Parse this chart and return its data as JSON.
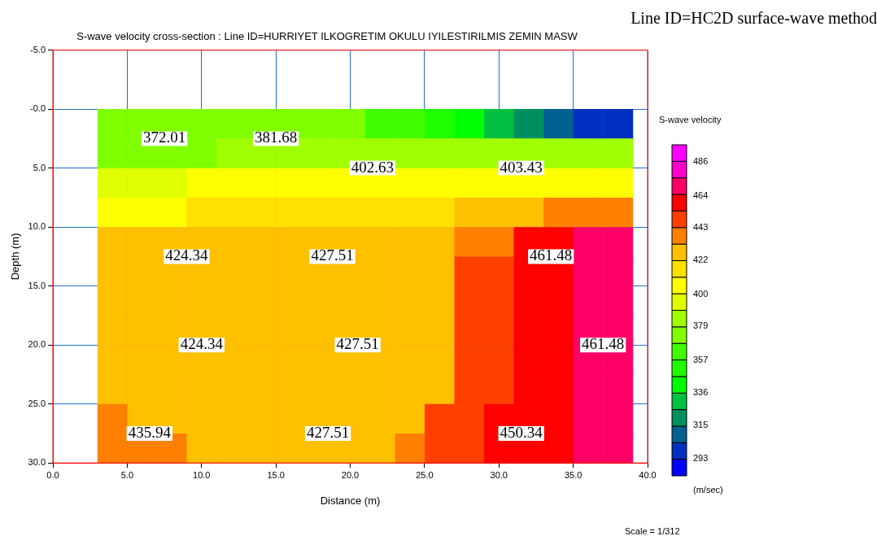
{
  "chart_data": {
    "type": "heatmap",
    "title": "S-wave velocity cross-section : Line ID=HURRIYET ILKOGRETIM OKULU IYILESTIRILMIS ZEMIN MASW",
    "xlabel": "Distance (m)",
    "ylabel": "Depth (m)",
    "clabel": "S-wave velocity",
    "x": [
      4,
      6,
      8,
      10,
      12,
      14,
      16,
      18,
      20,
      22,
      24,
      26,
      28,
      30,
      32,
      34,
      36,
      38
    ],
    "y": [
      1.25,
      3.75,
      6.25,
      8.75,
      11.25,
      13.75,
      16.25,
      18.75,
      21.25,
      23.75,
      26.25,
      28.75
    ],
    "xlim": [
      0,
      40
    ],
    "xticks": [
      {
        "value": 0,
        "label": "0.0"
      },
      {
        "value": 5,
        "label": "5.0"
      },
      {
        "value": 10,
        "label": "10.0"
      },
      {
        "value": 15,
        "label": "15.0"
      },
      {
        "value": 20,
        "label": "20.0"
      },
      {
        "value": 25,
        "label": "25.0"
      },
      {
        "value": 30,
        "label": "30.0"
      },
      {
        "value": 35,
        "label": "35.0"
      },
      {
        "value": 40,
        "label": "40.0"
      }
    ],
    "ylim": [
      30,
      -5
    ],
    "yticks": [
      {
        "value": -5,
        "label": "-5.0"
      },
      {
        "value": 0,
        "label": "-0.0"
      },
      {
        "value": 5,
        "label": "5.0"
      },
      {
        "value": 10,
        "label": "10.0"
      },
      {
        "value": 15,
        "label": "15.0"
      },
      {
        "value": 20,
        "label": "20.0"
      },
      {
        "value": 25,
        "label": "25.0"
      },
      {
        "value": 30,
        "label": "30.0"
      }
    ],
    "grid": true,
    "clim": [
      282,
      497
    ],
    "cticks": [
      293,
      315,
      336,
      357,
      379,
      400,
      422,
      443,
      464,
      486
    ],
    "colors": [
      "#0000ff",
      "#0030c0",
      "#006090",
      "#009060",
      "#00c040",
      "#00ff00",
      "#20ff00",
      "#40ff00",
      "#80ff00",
      "#a0ff00",
      "#e0ff00",
      "#ffff00",
      "#ffe000",
      "#ffc000",
      "#ff8000",
      "#ff4000",
      "#ff0000",
      "#ff0066",
      "#ff00cc",
      "#ff00ff"
    ],
    "cells": [
      [
        372,
        372,
        372,
        372,
        372,
        372,
        372,
        372,
        372,
        365,
        365,
        355,
        345,
        335,
        320,
        310,
        300,
        295
      ],
      [
        375,
        375,
        375,
        375,
        380,
        380,
        380,
        380,
        380,
        385,
        385,
        385,
        385,
        385,
        385,
        385,
        385,
        385
      ],
      [
        395,
        395,
        395,
        402,
        402,
        402,
        402,
        402,
        402,
        405,
        405,
        405,
        405,
        405,
        410,
        410,
        410,
        410
      ],
      [
        410,
        410,
        410,
        415,
        415,
        415,
        415,
        415,
        415,
        420,
        420,
        420,
        430,
        430,
        430,
        440,
        440,
        440
      ],
      [
        424,
        424,
        424,
        424,
        424,
        424,
        424,
        424,
        424,
        430,
        430,
        430,
        440,
        440,
        455,
        455,
        468,
        468
      ],
      [
        424,
        424,
        424,
        424,
        424,
        424,
        424,
        424,
        424,
        432,
        432,
        432,
        445,
        445,
        460,
        460,
        475,
        475
      ],
      [
        424,
        424,
        424,
        424,
        424,
        424,
        424,
        424,
        424,
        432,
        432,
        432,
        445,
        445,
        460,
        460,
        475,
        475
      ],
      [
        424,
        424,
        424,
        424,
        424,
        424,
        424,
        424,
        424,
        432,
        432,
        432,
        445,
        445,
        460,
        460,
        475,
        475
      ],
      [
        424,
        424,
        424,
        424,
        424,
        424,
        424,
        424,
        424,
        432,
        432,
        432,
        445,
        445,
        460,
        460,
        475,
        475
      ],
      [
        424,
        424,
        424,
        424,
        424,
        424,
        424,
        424,
        424,
        432,
        432,
        432,
        445,
        445,
        460,
        460,
        475,
        475
      ],
      [
        435,
        426,
        426,
        426,
        426,
        426,
        426,
        426,
        426,
        432,
        432,
        445,
        445,
        460,
        460,
        460,
        475,
        475
      ],
      [
        435,
        435,
        435,
        426,
        426,
        426,
        426,
        426,
        426,
        432,
        435,
        445,
        445,
        460,
        460,
        460,
        475,
        475
      ]
    ],
    "annotations": [
      "Line ID=HC2D surface-wave method",
      "(m/sec)",
      "Scale = 1/312",
      "372.01",
      "381.68",
      "402.63",
      "403.43",
      "424.34",
      "427.51",
      "461.48",
      "424.34",
      "427.51",
      "461.48",
      "435.94",
      "427.51",
      "450.34"
    ]
  }
}
